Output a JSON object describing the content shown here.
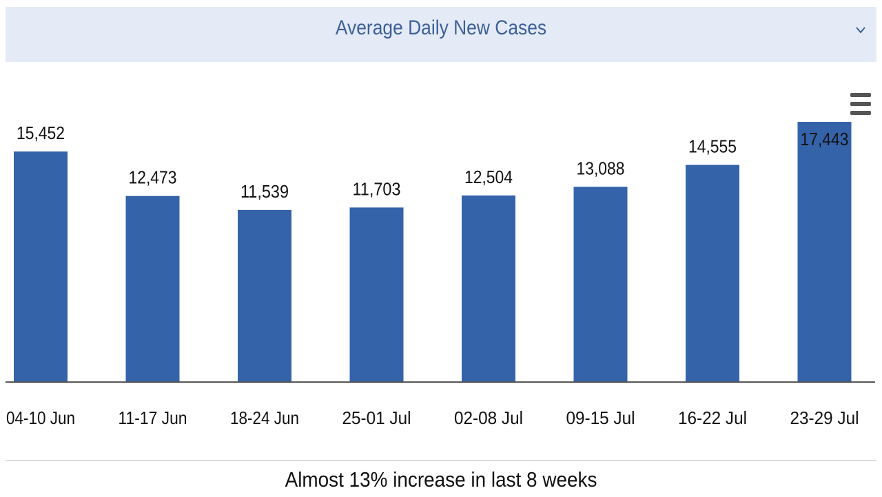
{
  "header": {
    "title": "Average Daily New Cases",
    "chevron_icon": "chevron-down-icon"
  },
  "menu": {
    "icon": "hamburger-menu-icon"
  },
  "chart_data": {
    "type": "bar",
    "title": "Average Daily New Cases",
    "xlabel": "",
    "ylabel": "",
    "categories": [
      "04-10 Jun",
      "11-17 Jun",
      "18-24 Jun",
      "25-01 Jul",
      "02-08 Jul",
      "09-15 Jul",
      "16-22 Jul",
      "23-29 Jul"
    ],
    "values": [
      15452,
      12473,
      11539,
      11703,
      12504,
      13088,
      14555,
      17443
    ],
    "value_labels": [
      "15,452",
      "12,473",
      "11,539",
      "11,703",
      "12,504",
      "13,088",
      "14,555",
      "17,443"
    ],
    "ylim": [
      0,
      17443
    ],
    "grid": false,
    "legend": "none",
    "bar_color": "#3563a9",
    "axis_color": "#555555"
  },
  "footer": {
    "caption": "Almost 13% increase in last 8 weeks"
  }
}
